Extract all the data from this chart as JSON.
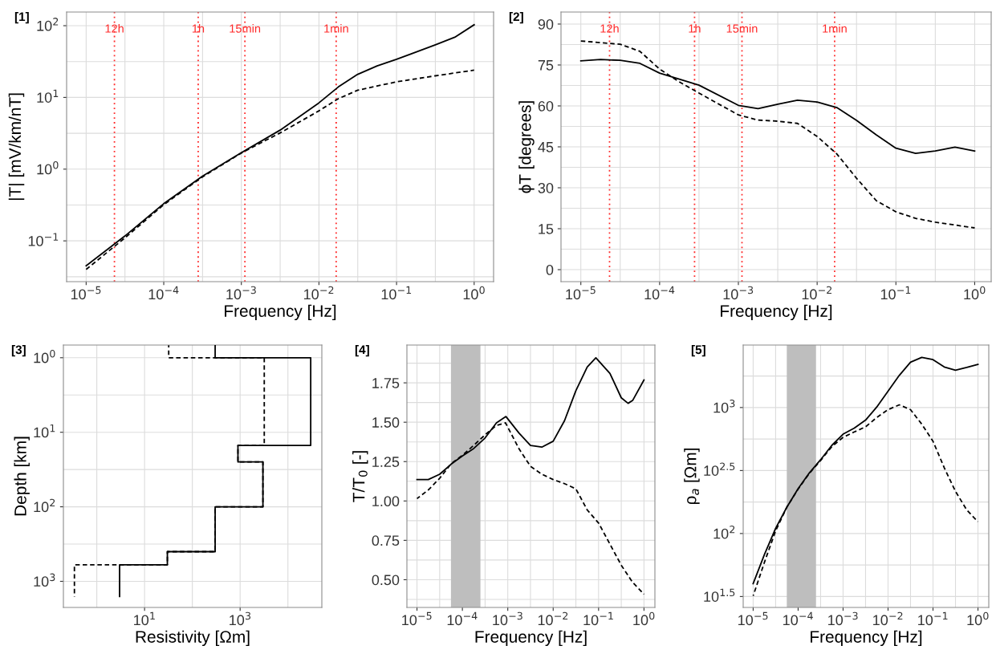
{
  "chart_data": [
    {
      "type": "line",
      "title": "[1]",
      "xlabel": "Frequency [Hz]",
      "ylabel": "|T| [mV/km/nT]",
      "log": "xy",
      "grid": true,
      "xlim": [
        5.6e-06,
        1.78
      ],
      "ylim": [
        0.027,
        155
      ],
      "xticks": [
        {
          "value": 1e-05,
          "label": "10$^{−5}$"
        },
        {
          "value": 3.162e-05,
          "label": null
        },
        {
          "value": 0.0001,
          "label": "10$^{−4}$"
        },
        {
          "value": 0.0003162,
          "label": null
        },
        {
          "value": 0.001,
          "label": "10$^{−3}$"
        },
        {
          "value": 0.003162,
          "label": null
        },
        {
          "value": 0.01,
          "label": "10$^{−2}$"
        },
        {
          "value": 0.03162,
          "label": null
        },
        {
          "value": 0.1,
          "label": "10$^{−1}$"
        },
        {
          "value": 0.3162,
          "label": null
        },
        {
          "value": 1,
          "label": "10$^{0}$"
        }
      ],
      "yticks": [
        {
          "value": 0.03162,
          "label": null
        },
        {
          "value": 0.1,
          "label": "10$^{−1}$"
        },
        {
          "value": 0.3162,
          "label": null
        },
        {
          "value": 1,
          "label": "10$^{0}$"
        },
        {
          "value": 3.162,
          "label": null
        },
        {
          "value": 10,
          "label": "10$^{1}$"
        },
        {
          "value": 31.62,
          "label": null
        },
        {
          "value": 100,
          "label": "10$^{2}$"
        }
      ],
      "ref_lines": [
        {
          "axis": "x",
          "value": 2.315e-05,
          "label": "12h",
          "color": "#ff2a2a",
          "line_style": "dotted"
        },
        {
          "axis": "x",
          "value": 0.0002778,
          "label": "1h",
          "color": "#ff2a2a",
          "line_style": "dotted"
        },
        {
          "axis": "x",
          "value": 0.001111,
          "label": "15min",
          "color": "#ff2a2a",
          "line_style": "dotted"
        },
        {
          "axis": "x",
          "value": 0.01667,
          "label": "1min",
          "color": "#ff2a2a",
          "line_style": "dotted"
        }
      ],
      "series": [
        {
          "color": "#000000",
          "line_style": "solid",
          "x": [
            1e-05,
            3.162e-05,
            0.0001,
            0.0003162,
            0.001,
            0.003162,
            0.01,
            0.01778,
            0.03162,
            0.05623,
            0.1,
            0.3162,
            0.5623,
            1
          ],
          "values": [
            0.045,
            0.117,
            0.33,
            0.8,
            1.7,
            3.5,
            8.4,
            14,
            21,
            27.5,
            34,
            54,
            69,
            103
          ]
        },
        {
          "color": "#000000",
          "line_style": "dashed",
          "x": [
            1e-05,
            3.162e-05,
            0.0001,
            0.0003162,
            0.001,
            0.003162,
            0.01,
            0.01778,
            0.03162,
            0.1,
            0.3162,
            1
          ],
          "values": [
            0.04,
            0.11,
            0.32,
            0.78,
            1.68,
            3.2,
            6.5,
            9.6,
            12.6,
            16.5,
            20,
            24
          ]
        }
      ]
    },
    {
      "type": "line",
      "title": "[2]",
      "xlabel": "Frequency [Hz]",
      "ylabel": "ϕT [degrees]",
      "log": "x",
      "grid": true,
      "xlim": [
        5.6e-06,
        1.62
      ],
      "ylim": [
        -4.4,
        94.4
      ],
      "xticks": [
        {
          "value": 1e-05,
          "label": "10$^{−5}$"
        },
        {
          "value": 3.162e-05,
          "label": null
        },
        {
          "value": 0.0001,
          "label": "10$^{−4}$"
        },
        {
          "value": 0.0003162,
          "label": null
        },
        {
          "value": 0.001,
          "label": "10$^{−3}$"
        },
        {
          "value": 0.003162,
          "label": null
        },
        {
          "value": 0.01,
          "label": "10$^{−2}$"
        },
        {
          "value": 0.03162,
          "label": null
        },
        {
          "value": 0.1,
          "label": "10$^{−1}$"
        },
        {
          "value": 0.3162,
          "label": null
        },
        {
          "value": 1,
          "label": "10$^{0}$"
        }
      ],
      "yticks": [
        0,
        {
          "value": 7.5,
          "label": null
        },
        15,
        {
          "value": 22.5,
          "label": null
        },
        30,
        {
          "value": 37.5,
          "label": null
        },
        45,
        {
          "value": 52.5,
          "label": null
        },
        60,
        {
          "value": 67.5,
          "label": null
        },
        75,
        {
          "value": 82.5,
          "label": null
        },
        90
      ],
      "ref_lines": [
        {
          "axis": "x",
          "value": 2.315e-05,
          "label": "12h",
          "color": "#ff2a2a",
          "line_style": "dotted"
        },
        {
          "axis": "x",
          "value": 0.0002778,
          "label": "1h",
          "color": "#ff2a2a",
          "line_style": "dotted"
        },
        {
          "axis": "x",
          "value": 0.001111,
          "label": "15min",
          "color": "#ff2a2a",
          "line_style": "dotted"
        },
        {
          "axis": "x",
          "value": 0.01667,
          "label": "1min",
          "color": "#ff2a2a",
          "line_style": "dotted"
        }
      ],
      "series": [
        {
          "color": "#000000",
          "line_style": "solid",
          "x": [
            1e-05,
            1.778e-05,
            3.162e-05,
            5.623e-05,
            0.0001,
            0.0003162,
            0.001,
            0.001778,
            0.003162,
            0.005623,
            0.01,
            0.01778,
            0.03162,
            0.05623,
            0.1,
            0.1778,
            0.3162,
            0.5623,
            1
          ],
          "values": [
            76.5,
            77,
            76.7,
            75.6,
            72,
            67.6,
            60.2,
            59,
            60.6,
            62.1,
            61.4,
            59.4,
            54.7,
            49.4,
            44.5,
            42.6,
            43.5,
            44.9,
            43.5
          ]
        },
        {
          "color": "#000000",
          "line_style": "dashed",
          "x": [
            1e-05,
            3.162e-05,
            5.623e-05,
            0.0001,
            0.0001778,
            0.0003162,
            0.001,
            0.001778,
            0.003162,
            0.005623,
            0.01,
            0.01778,
            0.03162,
            0.05623,
            0.1,
            0.1778,
            0.3162,
            1
          ],
          "values": [
            83.8,
            82.6,
            80,
            73.5,
            68.8,
            64.7,
            56.7,
            54.8,
            54.4,
            53.6,
            48.8,
            42.4,
            33.5,
            25.3,
            21.2,
            18.8,
            17.4,
            15.3
          ]
        }
      ]
    },
    {
      "type": "line",
      "title": "[3]",
      "xlabel": "Resistivity [Ωm]",
      "ylabel": "Depth [km]",
      "log": "xy",
      "grid": true,
      "xlim": [
        0.2,
        51300
      ],
      "ylim": [
        2240,
        0.676
      ],
      "xticks": [
        {
          "value": 1,
          "label": null
        },
        {
          "value": 10,
          "label": "10$^{1}$"
        },
        {
          "value": 100,
          "label": null
        },
        {
          "value": 1000,
          "label": "10$^{3}$"
        },
        {
          "value": 10000,
          "label": null
        }
      ],
      "yticks": [
        {
          "value": 1,
          "label": "10$^{0}$"
        },
        {
          "value": 3.162,
          "label": null
        },
        {
          "value": 10,
          "label": "10$^{1}$"
        },
        {
          "value": 31.62,
          "label": null
        },
        {
          "value": 100,
          "label": "10$^{2}$"
        },
        {
          "value": 316.2,
          "label": null
        },
        {
          "value": 1000,
          "label": "10$^{3}$"
        }
      ],
      "series": [
        {
          "color": "#000000",
          "line_style": "dashed",
          "x": [
            32,
            32,
            3200,
            3200,
            900,
            900,
            3000,
            3000,
            300,
            300,
            30,
            30,
            0.34,
            0.34
          ],
          "values": [
            0.68,
            1,
            1,
            15,
            15,
            25,
            25,
            100,
            100,
            400,
            400,
            600,
            600,
            1600
          ]
        },
        {
          "color": "#000000",
          "line_style": "solid",
          "x": [
            300,
            300,
            30000,
            30000,
            900,
            900,
            3000,
            3000,
            300,
            300,
            30,
            30,
            3,
            3
          ],
          "values": [
            0.68,
            1,
            1,
            15,
            15,
            25,
            25,
            100,
            100,
            400,
            400,
            600,
            600,
            1600
          ]
        }
      ]
    },
    {
      "type": "line",
      "title": "[4]",
      "xlabel": "Frequency [Hz]",
      "ylabel": "T/T$_{0}$ [-]",
      "log": "x",
      "grid": true,
      "xlim": [
        6e-06,
        1.74
      ],
      "ylim": [
        0.324,
        1.99
      ],
      "xticks": [
        {
          "value": 1e-05,
          "label": "10$^{−5}$"
        },
        {
          "value": 3.162e-05,
          "label": null
        },
        {
          "value": 0.0001,
          "label": "10$^{−4}$"
        },
        {
          "value": 0.0003162,
          "label": null
        },
        {
          "value": 0.001,
          "label": "10$^{−3}$"
        },
        {
          "value": 0.003162,
          "label": null
        },
        {
          "value": 0.01,
          "label": "10$^{−2}$"
        },
        {
          "value": 0.03162,
          "label": null
        },
        {
          "value": 0.1,
          "label": "10$^{−1}$"
        },
        {
          "value": 0.3162,
          "label": null
        },
        {
          "value": 1,
          "label": "10$^{0}$"
        }
      ],
      "yticks": [
        {
          "value": 0.375,
          "label": null
        },
        {
          "value": 0.5,
          "label": "0.50"
        },
        {
          "value": 0.625,
          "label": null
        },
        {
          "value": 0.75,
          "label": "0.75"
        },
        {
          "value": 0.875,
          "label": null
        },
        {
          "value": 1,
          "label": "1.00"
        },
        {
          "value": 1.125,
          "label": null
        },
        {
          "value": 1.25,
          "label": "1.25"
        },
        {
          "value": 1.375,
          "label": null
        },
        {
          "value": 1.5,
          "label": "1.50"
        },
        {
          "value": 1.625,
          "label": null
        },
        {
          "value": 1.75,
          "label": "1.75"
        },
        {
          "value": 1.875,
          "label": null
        }
      ],
      "bands": [
        {
          "axis": "x",
          "from": 5.6e-05,
          "to": 0.00025,
          "color": "#bebebe"
        }
      ],
      "series": [
        {
          "color": "#000000",
          "line_style": "solid",
          "x": [
            1e-05,
            1.778e-05,
            3.162e-05,
            5.623e-05,
            0.0001,
            0.0001778,
            0.0003162,
            0.0005623,
            0.000912,
            0.001778,
            0.003162,
            0.005623,
            0.01,
            0.01778,
            0.03162,
            0.05623,
            0.0871,
            0.1778,
            0.3162,
            0.4467,
            0.5623,
            1
          ],
          "values": [
            1.136,
            1.136,
            1.17,
            1.233,
            1.286,
            1.333,
            1.4,
            1.496,
            1.536,
            1.43,
            1.353,
            1.342,
            1.379,
            1.51,
            1.7,
            1.85,
            1.909,
            1.81,
            1.655,
            1.62,
            1.638,
            1.768
          ]
        },
        {
          "color": "#000000",
          "line_style": "dashed",
          "x": [
            1e-05,
            1.778e-05,
            3.162e-05,
            5.623e-05,
            0.0001,
            0.0001778,
            0.0003162,
            0.0005623,
            0.0008913,
            0.001778,
            0.003162,
            0.005623,
            0.01,
            0.01778,
            0.03162,
            0.05623,
            0.1,
            0.1778,
            0.3162,
            0.5623,
            1
          ],
          "values": [
            1.015,
            1.07,
            1.144,
            1.236,
            1.29,
            1.353,
            1.42,
            1.48,
            1.496,
            1.33,
            1.22,
            1.17,
            1.136,
            1.11,
            1.077,
            0.943,
            0.86,
            0.726,
            0.592,
            0.483,
            0.408
          ]
        }
      ]
    },
    {
      "type": "line",
      "title": "[5]",
      "xlabel": "Frequency [Hz]",
      "ylabel": "ρ$_{a}$ [Ωm]",
      "log": "xy",
      "grid": true,
      "xlim": [
        6e-06,
        1.74
      ],
      "ylim": [
        25.9,
        3133
      ],
      "xticks": [
        {
          "value": 1e-05,
          "label": "10$^{−5}$"
        },
        {
          "value": 3.162e-05,
          "label": null
        },
        {
          "value": 0.0001,
          "label": "10$^{−4}$"
        },
        {
          "value": 0.0003162,
          "label": null
        },
        {
          "value": 0.001,
          "label": "10$^{−3}$"
        },
        {
          "value": 0.003162,
          "label": null
        },
        {
          "value": 0.01,
          "label": "10$^{−2}$"
        },
        {
          "value": 0.03162,
          "label": null
        },
        {
          "value": 0.1,
          "label": "10$^{−1}$"
        },
        {
          "value": 0.3162,
          "label": null
        },
        {
          "value": 1,
          "label": "10$^{0}$"
        }
      ],
      "yticks": [
        {
          "value": 31.62,
          "label": "10$^{1.5}$"
        },
        {
          "value": 56.23,
          "label": null
        },
        {
          "value": 100,
          "label": "10$^{2}$"
        },
        {
          "value": 177.8,
          "label": null
        },
        {
          "value": 316.2,
          "label": "10$^{2.5}$"
        },
        {
          "value": 562.3,
          "label": null
        },
        {
          "value": 1000,
          "label": "10$^{3}$"
        },
        {
          "value": 1778,
          "label": null
        }
      ],
      "bands": [
        {
          "axis": "x",
          "from": 5.6e-05,
          "to": 0.00025,
          "color": "#bebebe"
        }
      ],
      "series": [
        {
          "color": "#000000",
          "line_style": "solid",
          "x": [
            1e-05,
            1.778e-05,
            3.162e-05,
            5.623e-05,
            0.0001,
            0.0001778,
            0.0003162,
            0.0005623,
            0.001,
            0.001778,
            0.003162,
            0.005623,
            0.01,
            0.01778,
            0.03162,
            0.05623,
            0.1,
            0.1778,
            0.3162,
            0.5623,
            1
          ],
          "values": [
            40,
            68,
            110,
            162,
            227,
            303,
            385,
            501,
            615,
            687,
            794,
            1010,
            1350,
            1800,
            2290,
            2500,
            2400,
            2100,
            1980,
            2080,
            2200
          ]
        },
        {
          "color": "#000000",
          "line_style": "dashed",
          "x": [
            1e-05,
            1.778e-05,
            3.162e-05,
            5.623e-05,
            0.0001,
            0.0001778,
            0.0003162,
            0.0005623,
            0.001,
            0.001778,
            0.003162,
            0.005623,
            0.01,
            0.01778,
            0.03162,
            0.05623,
            0.1,
            0.1778,
            0.3162,
            0.5623,
            1
          ],
          "values": [
            32,
            59,
            105,
            162,
            225,
            300,
            380,
            490,
            580,
            640,
            703,
            833,
            962,
            1050,
            962,
            738,
            540,
            333,
            216,
            154,
            124
          ]
        }
      ]
    }
  ]
}
